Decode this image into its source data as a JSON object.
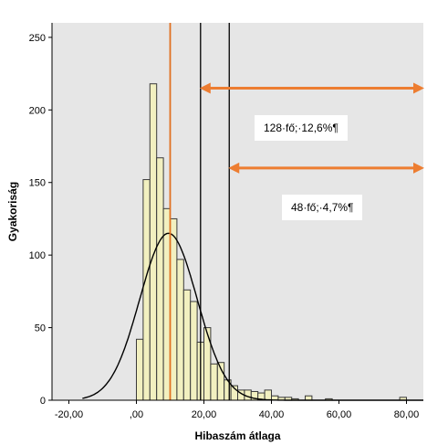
{
  "chart_data": {
    "type": "histogram",
    "title": "",
    "xlabel": "Hibaszám átlaga",
    "ylabel": "Gyakoriság",
    "xlim": [
      -25,
      85
    ],
    "ylim": [
      0,
      260
    ],
    "x_ticks": [
      {
        "value": -20,
        "label": "-20,00"
      },
      {
        "value": 0,
        "label": ",00"
      },
      {
        "value": 20,
        "label": "20,00"
      },
      {
        "value": 40,
        "label": "40,00"
      },
      {
        "value": 60,
        "label": "60,00"
      },
      {
        "value": 80,
        "label": "80,00"
      }
    ],
    "y_ticks": [
      {
        "value": 0,
        "label": "0"
      },
      {
        "value": 50,
        "label": "50"
      },
      {
        "value": 100,
        "label": "100"
      },
      {
        "value": 150,
        "label": "150"
      },
      {
        "value": 200,
        "label": "200"
      },
      {
        "value": 250,
        "label": "250"
      }
    ],
    "bin_width": 2,
    "bins": [
      {
        "x0": 0,
        "count": 42
      },
      {
        "x0": 2,
        "count": 152
      },
      {
        "x0": 4,
        "count": 218
      },
      {
        "x0": 6,
        "count": 167
      },
      {
        "x0": 8,
        "count": 132
      },
      {
        "x0": 10,
        "count": 125
      },
      {
        "x0": 12,
        "count": 97
      },
      {
        "x0": 14,
        "count": 76
      },
      {
        "x0": 16,
        "count": 68
      },
      {
        "x0": 18,
        "count": 40
      },
      {
        "x0": 20,
        "count": 50
      },
      {
        "x0": 22,
        "count": 25
      },
      {
        "x0": 24,
        "count": 26
      },
      {
        "x0": 26,
        "count": 14
      },
      {
        "x0": 28,
        "count": 10
      },
      {
        "x0": 30,
        "count": 7
      },
      {
        "x0": 32,
        "count": 7
      },
      {
        "x0": 34,
        "count": 6
      },
      {
        "x0": 36,
        "count": 5
      },
      {
        "x0": 38,
        "count": 7
      },
      {
        "x0": 40,
        "count": 3
      },
      {
        "x0": 42,
        "count": 2
      },
      {
        "x0": 44,
        "count": 2
      },
      {
        "x0": 46,
        "count": 1
      },
      {
        "x0": 50,
        "count": 3
      },
      {
        "x0": 56,
        "count": 1
      },
      {
        "x0": 78,
        "count": 2
      }
    ],
    "normal_curve": {
      "mean": 9.5,
      "sd": 8.5,
      "peak": 115
    },
    "vertical_lines": [
      {
        "x": 10,
        "color": "#e07020"
      },
      {
        "x": 19,
        "color": "#000000"
      },
      {
        "x": 27.5,
        "color": "#000000"
      }
    ],
    "annotations": [
      {
        "text": "128·fő;·12,6%¶",
        "arrow_from": 19,
        "arrow_to": 85,
        "arrow_y": 215
      },
      {
        "text": "48·fő;·4,7%¶",
        "arrow_from": 27.5,
        "arrow_to": 85,
        "arrow_y": 160
      }
    ],
    "colors": {
      "plot_bg": "#e6e6e6",
      "bar_fill": "#f2f0c0",
      "bar_stroke": "#3a3a3a",
      "curve": "#000000",
      "arrow": "#ed7d31",
      "mean_line": "#e07020"
    },
    "grid": false,
    "legend": "none"
  }
}
